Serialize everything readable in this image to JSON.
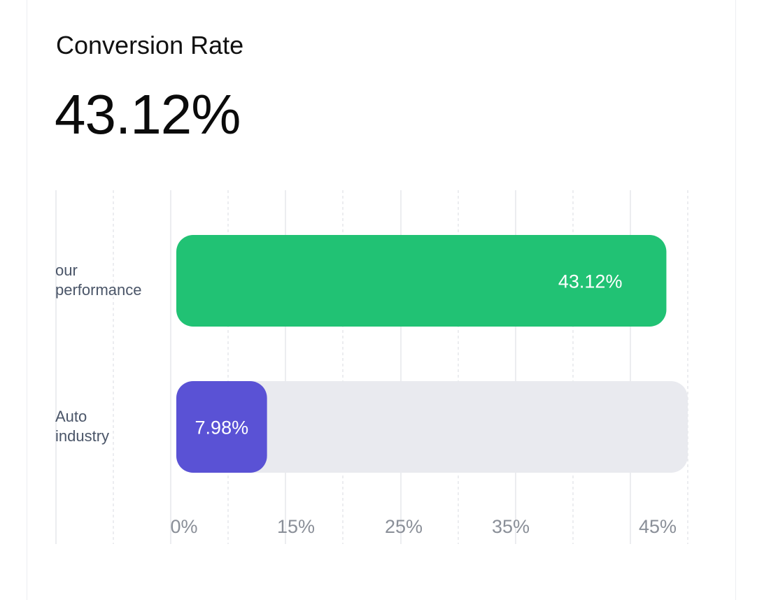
{
  "card": {
    "title": "Conversion Rate",
    "value": "43.12%"
  },
  "chart_data": {
    "type": "bar",
    "orientation": "horizontal",
    "categories": [
      [
        "our",
        "performance"
      ],
      [
        "Auto",
        "industry"
      ]
    ],
    "values": [
      43.12,
      7.98
    ],
    "value_labels": [
      "43.12%",
      "7.98%"
    ],
    "bar_colors": [
      "#21c274",
      "#5a52d5"
    ],
    "track_color": "#e9eaef",
    "xlim": [
      0,
      45
    ],
    "ticks": [
      "0%",
      "15%",
      "25%",
      "35%",
      "45%"
    ],
    "grid": true,
    "title": "",
    "xlabel": "",
    "ylabel": ""
  }
}
